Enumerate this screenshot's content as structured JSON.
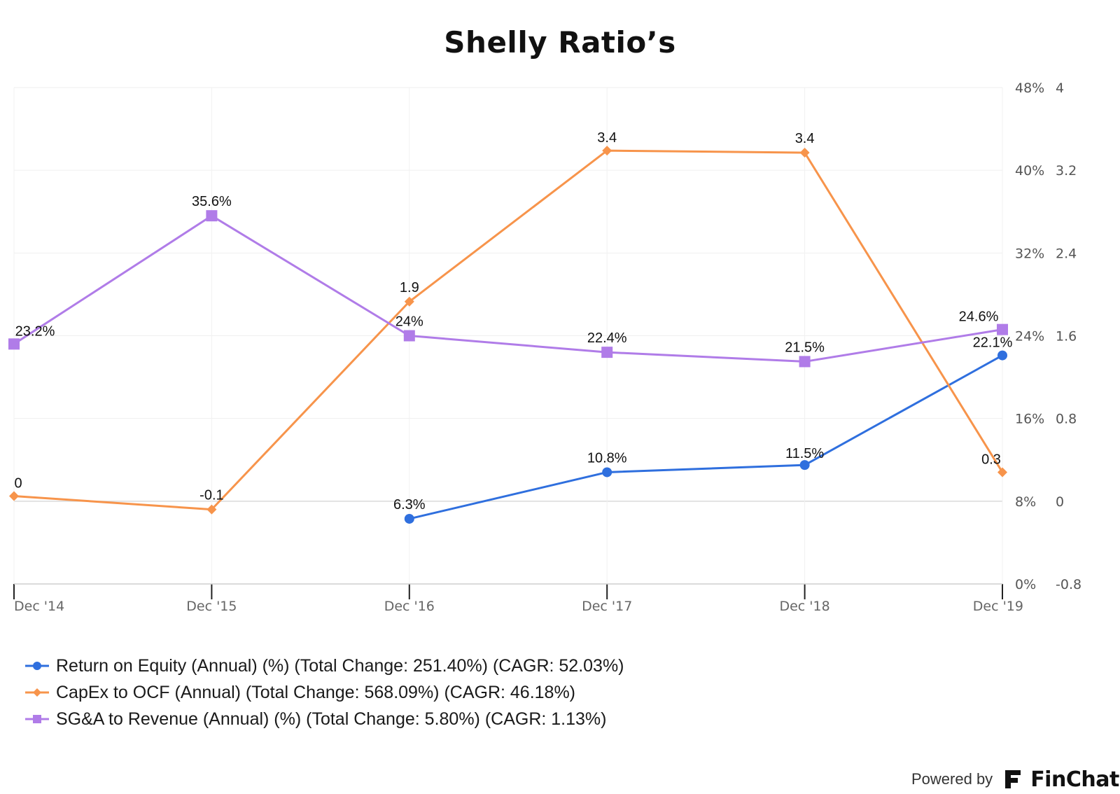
{
  "chart_data": {
    "type": "line",
    "title": "Shelly Ratio’s",
    "categories": [
      "Dec '14",
      "Dec '15",
      "Dec '16",
      "Dec '17",
      "Dec '18",
      "Dec '19"
    ],
    "axes": {
      "left_y": {
        "ticks": [
          "48%",
          "40%",
          "32%",
          "24%",
          "16%",
          "8%",
          "0%"
        ],
        "range": [
          0,
          48
        ]
      },
      "right_y": {
        "ticks": [
          "4",
          "3.2",
          "2.4",
          "1.6",
          "0.8",
          "0",
          "-0.8"
        ],
        "range": [
          -0.8,
          4
        ]
      }
    },
    "grid": true,
    "legend_position": "bottom-left",
    "series": [
      {
        "name": "Return on Equity (Annual) (%) (Total Change: 251.40%) (CAGR: 52.03%)",
        "axis": "left_y",
        "color": "#2f6fde",
        "marker": "circle",
        "values": [
          null,
          null,
          6.3,
          10.8,
          11.5,
          22.1
        ],
        "labels": [
          "",
          "",
          "6.3%",
          "10.8%",
          "11.5%",
          "22.1%"
        ]
      },
      {
        "name": "CapEx to OCF (Annual) (Total Change: 568.09%) (CAGR: 46.18%)",
        "axis": "right_y",
        "color": "#f7944b",
        "marker": "diamond",
        "values": [
          0.05,
          -0.08,
          1.93,
          3.39,
          3.37,
          0.28
        ],
        "labels": [
          "0",
          "-0.1",
          "1.9",
          "3.4",
          "3.4",
          "0.3"
        ]
      },
      {
        "name": "SG&A to Revenue (Annual) (%) (Total Change: 5.80%) (CAGR: 1.13%)",
        "axis": "left_y",
        "color": "#b07ce8",
        "marker": "square",
        "values": [
          23.2,
          35.6,
          24.0,
          22.4,
          21.5,
          24.6
        ],
        "labels": [
          "23.2%",
          "35.6%",
          "24%",
          "22.4%",
          "21.5%",
          "24.6%"
        ]
      }
    ]
  },
  "footer": {
    "powered_by": "Powered by",
    "brand_name": "FinChat"
  }
}
